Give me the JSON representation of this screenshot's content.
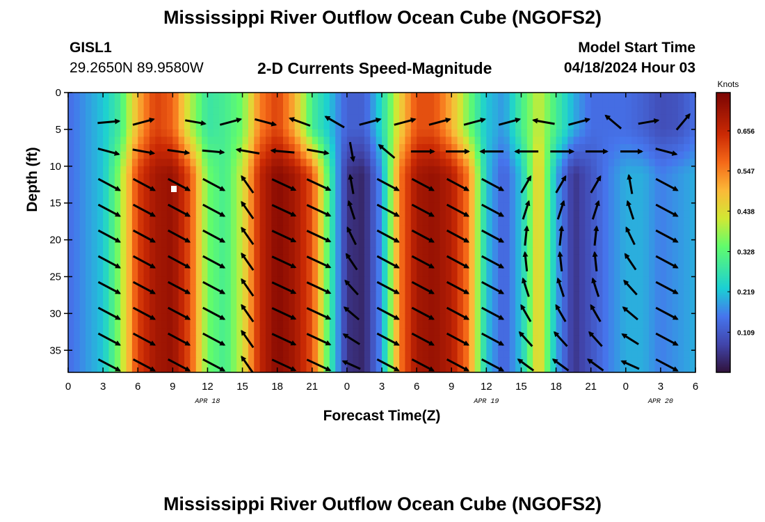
{
  "header": {
    "title": "Mississippi River Outflow Ocean Cube (NGOFS2)",
    "station_id": "GISL1",
    "coords": "29.2650N  89.9580W",
    "subtitle": "2-D Currents Speed-Magnitude",
    "model_start_label": "Model Start Time",
    "model_start_value": "04/18/2024 Hour 03"
  },
  "footer": {
    "title": "Mississippi River Outflow Ocean Cube (NGOFS2)"
  },
  "chart_data": {
    "type": "heatmap",
    "xlabel": "Forecast Time(Z)",
    "ylabel": "Depth (ft)",
    "x_hours_range": [
      0,
      54
    ],
    "x_tick_labels": [
      "0",
      "3",
      "6",
      "9",
      "12",
      "15",
      "18",
      "21",
      "0",
      "3",
      "6",
      "9",
      "12",
      "15",
      "18",
      "21",
      "0",
      "3",
      "6"
    ],
    "date_labels": [
      {
        "label": "APR 18",
        "hour": 12
      },
      {
        "label": "APR 19",
        "hour": 36
      },
      {
        "label": "APR 20",
        "hour": 51
      }
    ],
    "ylim": [
      0,
      38
    ],
    "y_ticks": [
      0,
      5,
      10,
      15,
      20,
      25,
      30,
      35
    ],
    "y_tick_labels": [
      "0",
      "5",
      "10",
      "15",
      "20",
      "25",
      "30",
      "35"
    ],
    "colorbar": {
      "label": "Knots",
      "range": [
        0,
        0.76
      ],
      "tick_values": [
        0.109,
        0.219,
        0.328,
        0.438,
        0.547,
        0.656
      ],
      "tick_labels": [
        "0.109",
        "0.219",
        "0.328",
        "0.438",
        "0.547",
        "0.656"
      ]
    },
    "speed_profile": {
      "hours": [
        0,
        3,
        4.5,
        6,
        7.5,
        9,
        10.5,
        12,
        13.5,
        15,
        16.5,
        18,
        19.5,
        21,
        22.5,
        24,
        25.5,
        27,
        28.5,
        30,
        31.5,
        33,
        34.5,
        36,
        37.5,
        39,
        40.5,
        42,
        43.5,
        45,
        46.5,
        48,
        49.5,
        51,
        52.5,
        54
      ],
      "surface": [
        0.14,
        0.22,
        0.3,
        0.5,
        0.62,
        0.58,
        0.4,
        0.28,
        0.3,
        0.35,
        0.55,
        0.62,
        0.5,
        0.3,
        0.22,
        0.12,
        0.12,
        0.25,
        0.45,
        0.6,
        0.6,
        0.5,
        0.35,
        0.22,
        0.18,
        0.3,
        0.42,
        0.3,
        0.2,
        0.14,
        0.14,
        0.14,
        0.12,
        0.09,
        0.1,
        0.14
      ],
      "deep": [
        0.14,
        0.22,
        0.38,
        0.62,
        0.7,
        0.72,
        0.6,
        0.35,
        0.3,
        0.42,
        0.66,
        0.74,
        0.7,
        0.6,
        0.3,
        0.05,
        0.03,
        0.18,
        0.55,
        0.7,
        0.72,
        0.68,
        0.55,
        0.22,
        0.12,
        0.22,
        0.48,
        0.2,
        0.05,
        0.1,
        0.16,
        0.2,
        0.2,
        0.16,
        0.18,
        0.2
      ]
    },
    "vectors": [
      {
        "hour": 3,
        "depth": 4,
        "dir_deg": 5,
        "mag": 0.5
      },
      {
        "hour": 6,
        "depth": 4,
        "dir_deg": 15,
        "mag": 0.5
      },
      {
        "hour": 10.5,
        "depth": 4,
        "dir_deg": -10,
        "mag": 0.45
      },
      {
        "hour": 13.5,
        "depth": 4,
        "dir_deg": 15,
        "mag": 0.5
      },
      {
        "hour": 16.5,
        "depth": 4,
        "dir_deg": -15,
        "mag": 0.5
      },
      {
        "hour": 19.5,
        "depth": 4,
        "dir_deg": 160,
        "mag": 0.5
      },
      {
        "hour": 22.5,
        "depth": 4,
        "dir_deg": 150,
        "mag": 0.5
      },
      {
        "hour": 25.5,
        "depth": 4,
        "dir_deg": 15,
        "mag": 0.5
      },
      {
        "hour": 28.5,
        "depth": 4,
        "dir_deg": 15,
        "mag": 0.5
      },
      {
        "hour": 31.5,
        "depth": 4,
        "dir_deg": 15,
        "mag": 0.5
      },
      {
        "hour": 34.5,
        "depth": 4,
        "dir_deg": 15,
        "mag": 0.5
      },
      {
        "hour": 37.5,
        "depth": 4,
        "dir_deg": 15,
        "mag": 0.5
      },
      {
        "hour": 40.5,
        "depth": 4,
        "dir_deg": 170,
        "mag": 0.5
      },
      {
        "hour": 43.5,
        "depth": 4,
        "dir_deg": 15,
        "mag": 0.5
      },
      {
        "hour": 46.5,
        "depth": 4,
        "dir_deg": 140,
        "mag": 0.45
      },
      {
        "hour": 49.5,
        "depth": 4,
        "dir_deg": 10,
        "mag": 0.45
      },
      {
        "hour": 52.5,
        "depth": 4,
        "dir_deg": 50,
        "mag": 0.45
      },
      {
        "hour": 3,
        "depth": 8,
        "dir_deg": -15,
        "mag": 0.5
      },
      {
        "hour": 6,
        "depth": 8,
        "dir_deg": -10,
        "mag": 0.5
      },
      {
        "hour": 9,
        "depth": 8,
        "dir_deg": -8,
        "mag": 0.5
      },
      {
        "hour": 12,
        "depth": 8,
        "dir_deg": -5,
        "mag": 0.5
      },
      {
        "hour": 15,
        "depth": 8,
        "dir_deg": 170,
        "mag": 0.55
      },
      {
        "hour": 18,
        "depth": 8,
        "dir_deg": 175,
        "mag": 0.55
      },
      {
        "hour": 21,
        "depth": 8,
        "dir_deg": -10,
        "mag": 0.5
      },
      {
        "hour": 24,
        "depth": 8,
        "dir_deg": -80,
        "mag": 0.4
      },
      {
        "hour": 27,
        "depth": 8,
        "dir_deg": 140,
        "mag": 0.45
      },
      {
        "hour": 30,
        "depth": 8,
        "dir_deg": 0,
        "mag": 0.55
      },
      {
        "hour": 33,
        "depth": 8,
        "dir_deg": 0,
        "mag": 0.55
      },
      {
        "hour": 36,
        "depth": 8,
        "dir_deg": 180,
        "mag": 0.55
      },
      {
        "hour": 39,
        "depth": 8,
        "dir_deg": 180,
        "mag": 0.55
      },
      {
        "hour": 42,
        "depth": 8,
        "dir_deg": 0,
        "mag": 0.55
      },
      {
        "hour": 45,
        "depth": 8,
        "dir_deg": 0,
        "mag": 0.5
      },
      {
        "hour": 48,
        "depth": 8,
        "dir_deg": 0,
        "mag": 0.5
      },
      {
        "hour": 51,
        "depth": 8,
        "dir_deg": -15,
        "mag": 0.5
      }
    ]
  }
}
